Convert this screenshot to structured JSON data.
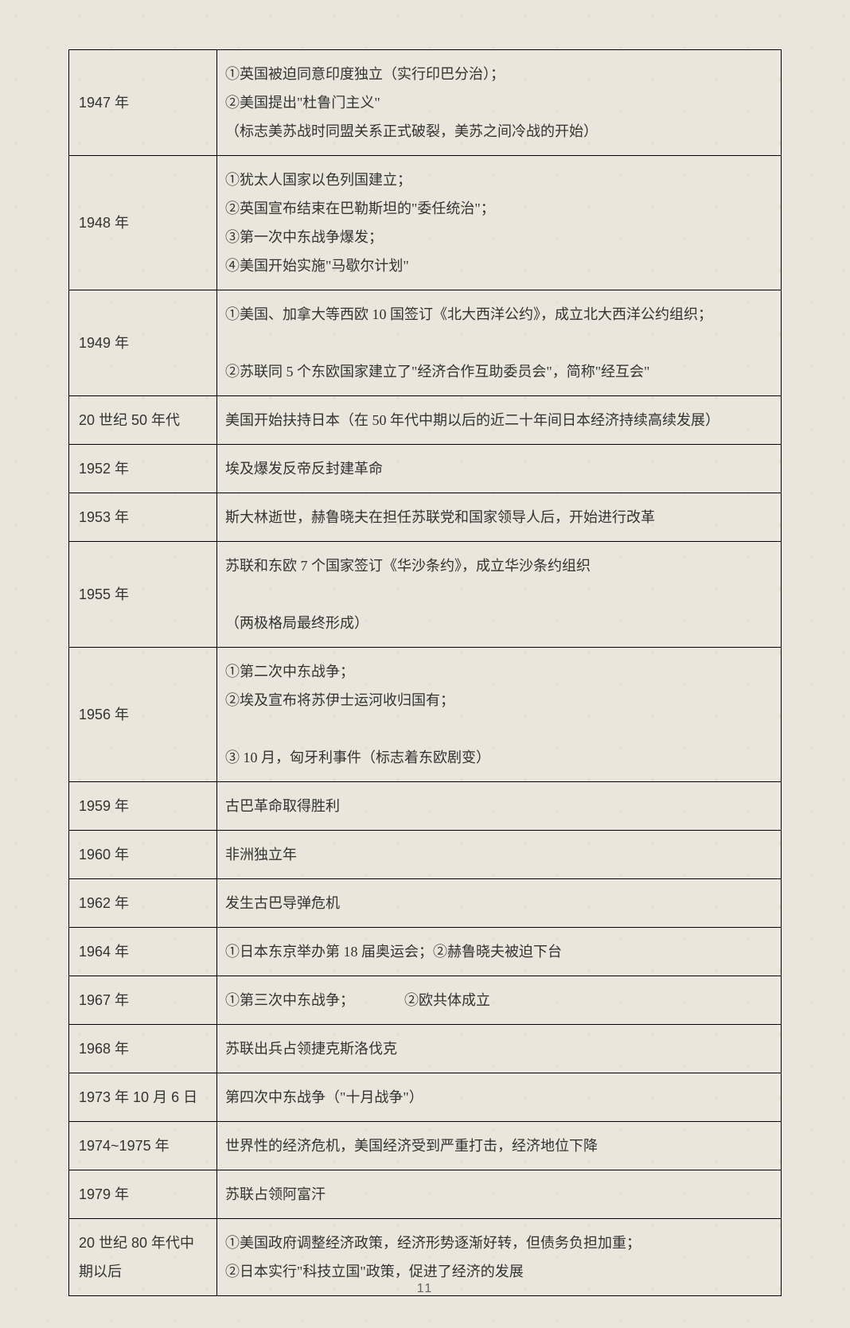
{
  "table": {
    "rows": [
      {
        "year": "1947 年",
        "event": "①英国被迫同意印度独立（实行印巴分治）；\n②美国提出\"杜鲁门主义\"\n（标志美苏战时同盟关系正式破裂，美苏之间冷战的开始）"
      },
      {
        "year": "1948 年",
        "event": "①犹太人国家以色列国建立；\n②英国宣布结束在巴勒斯坦的\"委任统治\"；\n③第一次中东战争爆发；\n④美国开始实施\"马歇尔计划\""
      },
      {
        "year": "1949 年",
        "event": "①美国、加拿大等西欧 10 国签订《北大西洋公约》，成立北大西洋公约组织；\n\n②苏联同 5 个东欧国家建立了\"经济合作互助委员会\"，简称\"经互会\""
      },
      {
        "year": "20 世纪 50 年代",
        "event": "美国开始扶持日本（在 50 年代中期以后的近二十年间日本经济持续高续发展）"
      },
      {
        "year": "1952 年",
        "event": "埃及爆发反帝反封建革命"
      },
      {
        "year": "1953 年",
        "event": "斯大林逝世，赫鲁晓夫在担任苏联党和国家领导人后，开始进行改革"
      },
      {
        "year": "1955 年",
        "event": "苏联和东欧 7 个国家签订《华沙条约》，成立华沙条约组织\n\n（两极格局最终形成）"
      },
      {
        "year": "1956 年",
        "event": "①第二次中东战争；\n②埃及宣布将苏伊士运河收归国有；\n\n③ 10 月，匈牙利事件（标志着东欧剧变）"
      },
      {
        "year": "1959 年",
        "event": "古巴革命取得胜利"
      },
      {
        "year": "1960 年",
        "event": "非洲独立年"
      },
      {
        "year": "1962 年",
        "event": "发生古巴导弹危机"
      },
      {
        "year": "1964 年",
        "event": "①日本东京举办第 18 届奥运会；②赫鲁晓夫被迫下台"
      },
      {
        "year": "1967 年",
        "event": "①第三次中东战争；　　　　②欧共体成立"
      },
      {
        "year": "1968 年",
        "event": "苏联出兵占领捷克斯洛伐克"
      },
      {
        "year": "1973 年 10 月 6 日",
        "event": "第四次中东战争（\"十月战争\"）"
      },
      {
        "year": "1974~1975 年",
        "event": "世界性的经济危机，美国经济受到严重打击，经济地位下降"
      },
      {
        "year": "1979 年",
        "event": "苏联占领阿富汗"
      },
      {
        "year": "20 世纪 80 年代中期以后",
        "event": "①美国政府调整经济政策，经济形势逐渐好转，但债务负担加重；\n②日本实行\"科技立国\"政策，促进了经济的发展"
      }
    ]
  },
  "page_number": "11",
  "colors": {
    "background": "#ebe6db",
    "border": "#000000",
    "text": "#333333",
    "page_num": "#666666"
  }
}
